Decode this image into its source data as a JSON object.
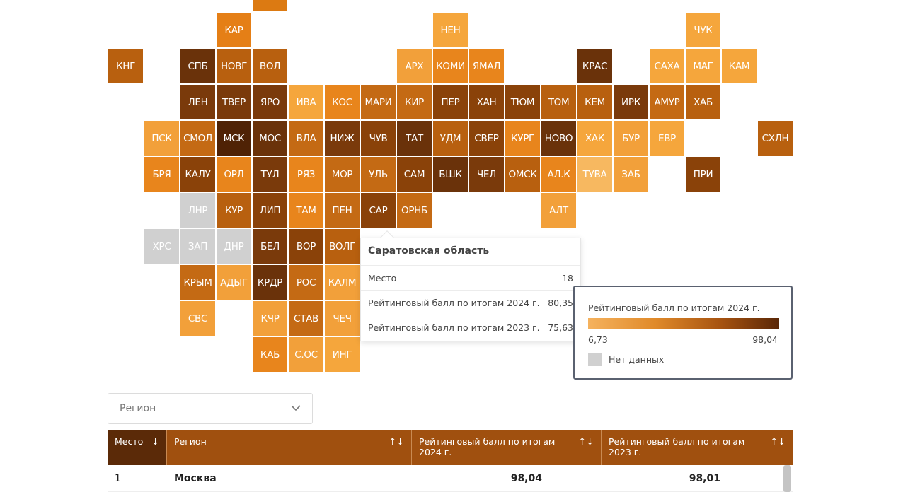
{
  "map": {
    "tiles": [
      {
        "id": "top",
        "label": "",
        "col": 7,
        "row": -1,
        "color": "#dc7a12"
      },
      {
        "id": "kar",
        "label": "КАР",
        "col": 6,
        "row": 0,
        "color": "#e57f16"
      },
      {
        "id": "nen",
        "label": "НЕН",
        "col": 12,
        "row": 0,
        "color": "#f5a63c"
      },
      {
        "id": "chuk",
        "label": "ЧУК",
        "col": 19,
        "row": 0,
        "color": "#f5a63c"
      },
      {
        "id": "kng",
        "label": "КНГ",
        "col": 3,
        "row": 1,
        "color": "#b8600f"
      },
      {
        "id": "spb",
        "label": "СПБ",
        "col": 5,
        "row": 1,
        "color": "#6a320a"
      },
      {
        "id": "novg",
        "label": "НОВГ",
        "col": 6,
        "row": 1,
        "color": "#b8600f"
      },
      {
        "id": "vol",
        "label": "ВОЛ",
        "col": 7,
        "row": 1,
        "color": "#b8600f"
      },
      {
        "id": "arh",
        "label": "АРХ",
        "col": 11,
        "row": 1,
        "color": "#f2a03a"
      },
      {
        "id": "komi",
        "label": "КОМИ",
        "col": 12,
        "row": 1,
        "color": "#e8851c"
      },
      {
        "id": "yamal",
        "label": "ЯМАЛ",
        "col": 13,
        "row": 1,
        "color": "#e8851c"
      },
      {
        "id": "kras",
        "label": "КРАС",
        "col": 16,
        "row": 1,
        "color": "#6a320a"
      },
      {
        "id": "saha",
        "label": "САХА",
        "col": 18,
        "row": 1,
        "color": "#f5a63c"
      },
      {
        "id": "mag",
        "label": "МАГ",
        "col": 19,
        "row": 1,
        "color": "#f5a63c"
      },
      {
        "id": "kam",
        "label": "КАМ",
        "col": 20,
        "row": 1,
        "color": "#f5a63c"
      },
      {
        "id": "len",
        "label": "ЛЕН",
        "col": 5,
        "row": 2,
        "color": "#7a3a0b"
      },
      {
        "id": "tver",
        "label": "ТВЕР",
        "col": 6,
        "row": 2,
        "color": "#7a3a0b"
      },
      {
        "id": "yaro",
        "label": "ЯРО",
        "col": 7,
        "row": 2,
        "color": "#7a3a0b"
      },
      {
        "id": "iva",
        "label": "ИВА",
        "col": 8,
        "row": 2,
        "color": "#f5a63c"
      },
      {
        "id": "kos",
        "label": "КОС",
        "col": 9,
        "row": 2,
        "color": "#e8851c"
      },
      {
        "id": "mari",
        "label": "МАРИ",
        "col": 10,
        "row": 2,
        "color": "#c46a14"
      },
      {
        "id": "kir",
        "label": "КИР",
        "col": 11,
        "row": 2,
        "color": "#c46a14"
      },
      {
        "id": "per",
        "label": "ПЕР",
        "col": 12,
        "row": 2,
        "color": "#8a4209"
      },
      {
        "id": "han",
        "label": "ХАН",
        "col": 13,
        "row": 2,
        "color": "#8a4209"
      },
      {
        "id": "tyum",
        "label": "ТЮМ",
        "col": 14,
        "row": 2,
        "color": "#8a4209"
      },
      {
        "id": "tom",
        "label": "ТОМ",
        "col": 15,
        "row": 2,
        "color": "#b8600f"
      },
      {
        "id": "kem",
        "label": "КЕМ",
        "col": 16,
        "row": 2,
        "color": "#b8600f"
      },
      {
        "id": "irk",
        "label": "ИРК",
        "col": 17,
        "row": 2,
        "color": "#7a3a0b"
      },
      {
        "id": "amur",
        "label": "АМУР",
        "col": 18,
        "row": 2,
        "color": "#c46a14"
      },
      {
        "id": "hab",
        "label": "ХАБ",
        "col": 19,
        "row": 2,
        "color": "#b8600f"
      },
      {
        "id": "psk",
        "label": "ПСК",
        "col": 4,
        "row": 3,
        "color": "#f2a03a"
      },
      {
        "id": "smol",
        "label": "СМОЛ",
        "col": 5,
        "row": 3,
        "color": "#c46a14"
      },
      {
        "id": "msk",
        "label": "МСК",
        "col": 6,
        "row": 3,
        "color": "#4f2205"
      },
      {
        "id": "mos",
        "label": "МОС",
        "col": 7,
        "row": 3,
        "color": "#6a320a"
      },
      {
        "id": "vla",
        "label": "ВЛА",
        "col": 8,
        "row": 3,
        "color": "#c46a14"
      },
      {
        "id": "nizh",
        "label": "НИЖ",
        "col": 9,
        "row": 3,
        "color": "#7a3a0b"
      },
      {
        "id": "chuv",
        "label": "ЧУВ",
        "col": 10,
        "row": 3,
        "color": "#8a4209"
      },
      {
        "id": "tat",
        "label": "ТАТ",
        "col": 11,
        "row": 3,
        "color": "#6a320a"
      },
      {
        "id": "udm",
        "label": "УДМ",
        "col": 12,
        "row": 3,
        "color": "#b8600f"
      },
      {
        "id": "sver",
        "label": "СВЕР",
        "col": 13,
        "row": 3,
        "color": "#8a4209"
      },
      {
        "id": "kurg",
        "label": "КУРГ",
        "col": 14,
        "row": 3,
        "color": "#e8851c"
      },
      {
        "id": "novo",
        "label": "НОВО",
        "col": 15,
        "row": 3,
        "color": "#6a320a"
      },
      {
        "id": "hak",
        "label": "ХАК",
        "col": 16,
        "row": 3,
        "color": "#f5a63c"
      },
      {
        "id": "bur",
        "label": "БУР",
        "col": 17,
        "row": 3,
        "color": "#f2a03a"
      },
      {
        "id": "evr",
        "label": "ЕВР",
        "col": 18,
        "row": 3,
        "color": "#f5a63c"
      },
      {
        "id": "shln",
        "label": "СХЛН",
        "col": 21,
        "row": 3,
        "color": "#b8600f"
      },
      {
        "id": "brya",
        "label": "БРЯ",
        "col": 4,
        "row": 4,
        "color": "#e8851c"
      },
      {
        "id": "kalu",
        "label": "КАЛУ",
        "col": 5,
        "row": 4,
        "color": "#8a4209"
      },
      {
        "id": "orl",
        "label": "ОРЛ",
        "col": 6,
        "row": 4,
        "color": "#e8851c"
      },
      {
        "id": "tul",
        "label": "ТУЛ",
        "col": 7,
        "row": 4,
        "color": "#7a3a0b"
      },
      {
        "id": "ryaz",
        "label": "РЯЗ",
        "col": 8,
        "row": 4,
        "color": "#e8851c"
      },
      {
        "id": "mor",
        "label": "МОР",
        "col": 9,
        "row": 4,
        "color": "#c46a14"
      },
      {
        "id": "ul",
        "label": "УЛЬ",
        "col": 10,
        "row": 4,
        "color": "#c46a14"
      },
      {
        "id": "sam",
        "label": "САМ",
        "col": 11,
        "row": 4,
        "color": "#8a4209"
      },
      {
        "id": "bshk",
        "label": "БШК",
        "col": 12,
        "row": 4,
        "color": "#6a320a"
      },
      {
        "id": "chel",
        "label": "ЧЕЛ",
        "col": 13,
        "row": 4,
        "color": "#7a3a0b"
      },
      {
        "id": "omsk",
        "label": "ОМСК",
        "col": 14,
        "row": 4,
        "color": "#b8600f"
      },
      {
        "id": "alk",
        "label": "АЛ.К",
        "col": 15,
        "row": 4,
        "color": "#e8851c"
      },
      {
        "id": "tuva",
        "label": "ТУВА",
        "col": 16,
        "row": 4,
        "color": "#f7b860"
      },
      {
        "id": "zab",
        "label": "ЗАБ",
        "col": 17,
        "row": 4,
        "color": "#f2a03a"
      },
      {
        "id": "pri",
        "label": "ПРИ",
        "col": 19,
        "row": 4,
        "color": "#8a4209"
      },
      {
        "id": "lnr",
        "label": "ЛНР",
        "col": 5,
        "row": 5,
        "color": "#d0d0d0"
      },
      {
        "id": "kur",
        "label": "КУР",
        "col": 6,
        "row": 5,
        "color": "#b8600f"
      },
      {
        "id": "lip",
        "label": "ЛИП",
        "col": 7,
        "row": 5,
        "color": "#8a4209"
      },
      {
        "id": "tam",
        "label": "ТАМ",
        "col": 8,
        "row": 5,
        "color": "#e8851c"
      },
      {
        "id": "pen",
        "label": "ПЕН",
        "col": 9,
        "row": 5,
        "color": "#c46a14"
      },
      {
        "id": "sar",
        "label": "САР",
        "col": 10,
        "row": 5,
        "color": "#8a4209"
      },
      {
        "id": "ornb",
        "label": "ОРНБ",
        "col": 11,
        "row": 5,
        "color": "#c46a14"
      },
      {
        "id": "alt",
        "label": "АЛТ",
        "col": 15,
        "row": 5,
        "color": "#f2a03a"
      },
      {
        "id": "hrs",
        "label": "ХРС",
        "col": 4,
        "row": 6,
        "color": "#d0d0d0"
      },
      {
        "id": "zap",
        "label": "ЗАП",
        "col": 5,
        "row": 6,
        "color": "#d0d0d0"
      },
      {
        "id": "dnr",
        "label": "ДНР",
        "col": 6,
        "row": 6,
        "color": "#d0d0d0"
      },
      {
        "id": "bel",
        "label": "БЕЛ",
        "col": 7,
        "row": 6,
        "color": "#7a3a0b"
      },
      {
        "id": "vor",
        "label": "ВОР",
        "col": 8,
        "row": 6,
        "color": "#8a4209"
      },
      {
        "id": "volg",
        "label": "ВОЛГ",
        "col": 9,
        "row": 6,
        "color": "#b8600f"
      },
      {
        "id": "krym",
        "label": "КРЫМ",
        "col": 5,
        "row": 7,
        "color": "#c46a14"
      },
      {
        "id": "adyg",
        "label": "АДЫГ",
        "col": 6,
        "row": 7,
        "color": "#f2a03a"
      },
      {
        "id": "krdr",
        "label": "КРДР",
        "col": 7,
        "row": 7,
        "color": "#6a320a"
      },
      {
        "id": "ros",
        "label": "РОС",
        "col": 8,
        "row": 7,
        "color": "#c46a14"
      },
      {
        "id": "kalm",
        "label": "КАЛМ",
        "col": 9,
        "row": 7,
        "color": "#f2a03a"
      },
      {
        "id": "svs",
        "label": "СВС",
        "col": 5,
        "row": 8,
        "color": "#f2a03a"
      },
      {
        "id": "kchr",
        "label": "КЧР",
        "col": 7,
        "row": 8,
        "color": "#f2a03a"
      },
      {
        "id": "stav",
        "label": "СТАВ",
        "col": 8,
        "row": 8,
        "color": "#c46a14"
      },
      {
        "id": "chech",
        "label": "ЧЕЧ",
        "col": 9,
        "row": 8,
        "color": "#f2a03a"
      },
      {
        "id": "kab",
        "label": "КАБ",
        "col": 7,
        "row": 9,
        "color": "#e8851c"
      },
      {
        "id": "sos",
        "label": "С.ОС",
        "col": 8,
        "row": 9,
        "color": "#f2a03a"
      },
      {
        "id": "ing",
        "label": "ИНГ",
        "col": 9,
        "row": 9,
        "color": "#f5a63c"
      }
    ]
  },
  "tooltip": {
    "title": "Саратовская область",
    "rows": [
      {
        "label": "Место",
        "value": "18"
      },
      {
        "label": "Рейтинговый балл по итогам 2024 г.",
        "value": "80,35"
      },
      {
        "label": "Рейтинговый балл по итогам 2023 г.",
        "value": "75,63"
      }
    ]
  },
  "legend": {
    "title": "Рейтинговый балл по итогам 2024 г.",
    "min": "6,73",
    "max": "98,04",
    "nodata": "Нет данных",
    "nodata_color": "#d0d0d0"
  },
  "filter": {
    "placeholder": "Регион"
  },
  "table": {
    "headers": [
      {
        "label": "Место",
        "sort": "↓"
      },
      {
        "label": "Регион",
        "sort": "↑↓"
      },
      {
        "label": "Рейтинговый балл по итогам 2024 г.",
        "sort": "↑↓"
      },
      {
        "label": "Рейтинговый балл по итогам 2023 г.",
        "sort": "↑↓"
      }
    ],
    "rows": [
      {
        "place": "1",
        "region": "Москва",
        "score2024": "98,04",
        "score2023": "98,01"
      }
    ]
  }
}
